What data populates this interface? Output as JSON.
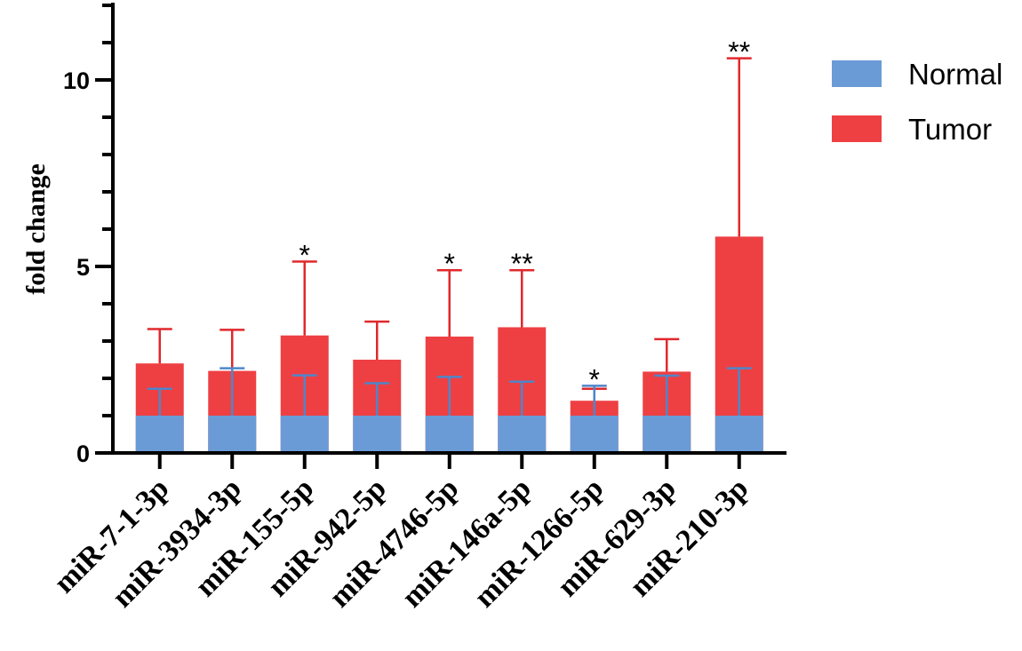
{
  "chart_data": {
    "type": "bar",
    "title": "",
    "xlabel": "",
    "ylabel": "fold change",
    "ylim": [
      0,
      12
    ],
    "yticks": [
      0,
      5,
      10
    ],
    "categories": [
      "miR-7-1-3p",
      "miR-3934-3p",
      "miR-155-5p",
      "miR-942-5p",
      "miR-4746-5p",
      "miR-146a-5p",
      "miR-1266-5p",
      "miR-629-3p",
      "miR-210-3p"
    ],
    "series": [
      {
        "name": "Normal",
        "color": "#6a9bd6",
        "values": [
          1,
          1,
          1,
          1,
          1,
          1,
          1,
          1,
          1
        ],
        "error_upper": [
          1.72,
          2.27,
          2.08,
          1.87,
          2.04,
          1.91,
          1.8,
          2.07,
          2.27
        ]
      },
      {
        "name": "Tumor",
        "color": "#ee4043",
        "values": [
          2.4,
          2.2,
          3.15,
          2.5,
          3.12,
          3.37,
          1.4,
          2.18,
          5.8
        ],
        "error_upper": [
          3.32,
          3.3,
          5.13,
          3.52,
          4.9,
          4.9,
          1.72,
          3.05,
          10.58
        ]
      }
    ],
    "significance": [
      "",
      "",
      "*",
      "",
      "*",
      "**",
      "*",
      "",
      "**"
    ],
    "legend": {
      "position": "top-right",
      "entries": [
        "Normal",
        "Tumor"
      ]
    }
  }
}
